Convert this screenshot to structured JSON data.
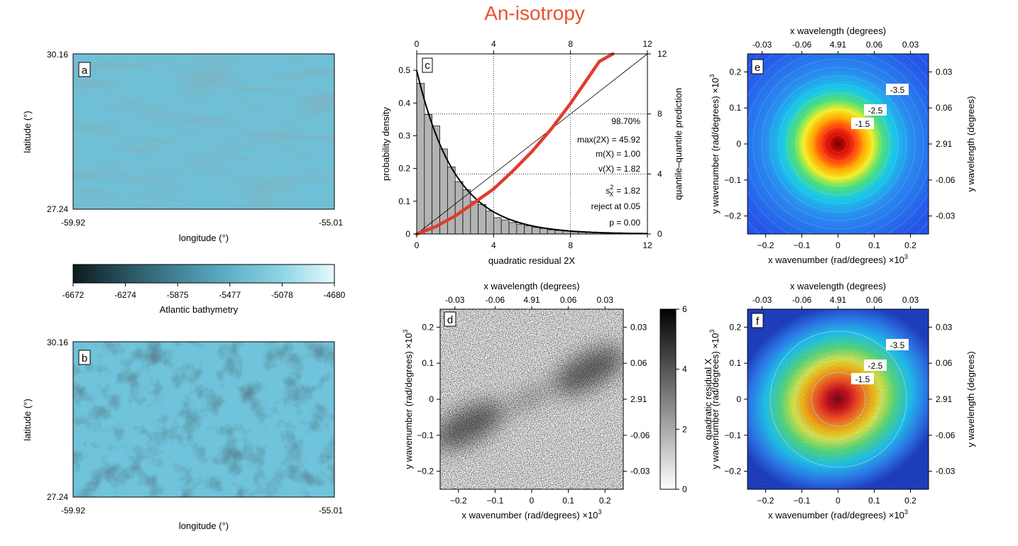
{
  "figure": {
    "title": "An-isotropy",
    "title_color": "#e8512f"
  },
  "panel_a": {
    "letter": "a",
    "xlabel": "longitude (°)",
    "ylabel": "latitude (°)",
    "x_ticks": [
      "-59.92",
      "-55.01"
    ],
    "y_ticks": [
      "30.16",
      "27.24"
    ]
  },
  "colorbar_ab": {
    "label": "Atlantic bathymetry",
    "ticks": [
      "-6672",
      "-6274",
      "-5875",
      "-5477",
      "-5078",
      "-4680"
    ],
    "colors": [
      "#0d1a1f",
      "#2f5f6d",
      "#56a7bf",
      "#8fd4e6",
      "#e6fbfd"
    ]
  },
  "panel_b": {
    "letter": "b",
    "xlabel": "longitude (°)",
    "ylabel": "latitude (°)",
    "x_ticks": [
      "-59.92",
      "-55.01"
    ],
    "y_ticks": [
      "30.16",
      "27.24"
    ]
  },
  "chart_data": [
    {
      "panel": "c",
      "type": "bar",
      "letter": "c",
      "xlabel": "quadratic residual 2X",
      "ylabel": "probability density",
      "y2label": "quantile–quantile prediction",
      "xlim": [
        0,
        12
      ],
      "ylim": [
        0,
        0.55
      ],
      "y2lim": [
        0,
        12
      ],
      "x_ticks": [
        "0",
        "4",
        "8",
        "12"
      ],
      "x2_ticks": [
        "0",
        "4",
        "8",
        "12"
      ],
      "y_ticks": [
        "0",
        "0.1",
        "0.2",
        "0.3",
        "0.4",
        "0.5"
      ],
      "y2_ticks": [
        "0",
        "4",
        "8",
        "12"
      ],
      "histogram": {
        "bin_width": 0.4,
        "values": [
          0.46,
          0.365,
          0.33,
          0.26,
          0.205,
          0.16,
          0.135,
          0.1,
          0.09,
          0.07,
          0.05,
          0.043,
          0.035,
          0.03,
          0.025,
          0.02,
          0.017,
          0.013,
          0.011,
          0.009,
          0.007,
          0.006,
          0.005,
          0.004,
          0.003,
          0.003,
          0.002,
          0.002,
          0.001,
          0.001
        ]
      },
      "qq_points": [
        [
          0,
          0
        ],
        [
          1,
          0.5
        ],
        [
          2,
          1.2
        ],
        [
          3,
          2.1
        ],
        [
          4,
          3.0
        ],
        [
          5,
          4.2
        ],
        [
          6,
          5.5
        ],
        [
          7,
          7.0
        ],
        [
          8,
          8.7
        ],
        [
          8.7,
          10.0
        ],
        [
          9.5,
          11.5
        ],
        [
          10.2,
          12.0
        ]
      ],
      "stats": [
        "98.70%",
        "max(2X) = 45.92",
        "m(X) =  1.00",
        "v(X) =  1.82",
        "reject at 0.05",
        "p =  0.00"
      ],
      "s2": {
        "symbol": "s",
        "sub": "X",
        "sup": "2",
        "value": "=  1.82"
      },
      "colors": {
        "bars": "#b3b3b3",
        "qq": "#e23b2e",
        "density": "#000000"
      }
    },
    {
      "panel": "d",
      "type": "heatmap",
      "letter": "d",
      "xlabel": "x wavenumber (rad/degrees)",
      "xlabel_scale": "×10",
      "xlabel_exp": "3",
      "ylabel": "y wavenumber (rad/degrees)",
      "ylabel_scale": "×10",
      "ylabel_exp": "3",
      "top_label": "x wavelength (degrees)",
      "right_label": "",
      "x_ticks": [
        "−0.2",
        "−0.1",
        "0",
        "0.1",
        "0.2"
      ],
      "y_ticks": [
        "0.2",
        "0.1",
        "0",
        "−0.1",
        "−0.2"
      ],
      "top_ticks": [
        "-0.03",
        "-0.06",
        "4.91",
        "0.06",
        "0.03"
      ],
      "right_ticks": [
        "0.03",
        "0.06",
        "2.91",
        "-0.06",
        "-0.03"
      ],
      "colorbar": {
        "label": "quadratic residual X",
        "ticks": [
          "6",
          "4",
          "2",
          "0"
        ],
        "colors": [
          "#000000",
          "#ffffff"
        ]
      }
    },
    {
      "panel": "e",
      "type": "heatmap",
      "letter": "e",
      "xlabel": "x wavenumber (rad/degrees)",
      "xlabel_scale": "×10",
      "xlabel_exp": "3",
      "ylabel": "y wavenumber (rad/degrees)",
      "ylabel_scale": "×10",
      "ylabel_exp": "3",
      "top_label": "x wavelength (degrees)",
      "right_label": "y wavelength (degrees)",
      "x_ticks": [
        "−0.2",
        "−0.1",
        "0",
        "0.1",
        "0.2"
      ],
      "y_ticks": [
        "0.2",
        "0.1",
        "0",
        "−0.1",
        "−0.2"
      ],
      "top_ticks": [
        "-0.03",
        "-0.06",
        "4.91",
        "0.06",
        "0.03"
      ],
      "right_ticks": [
        "0.03",
        "0.06",
        "2.91",
        "-0.06",
        "-0.03"
      ],
      "contour_labels": [
        "-3.5",
        "-2.5",
        "-1.5"
      ],
      "colors": [
        "#7a0000",
        "#e01010",
        "#ffb000",
        "#f2ef2a",
        "#55e070",
        "#1ac8e8",
        "#2a8af0",
        "#2556e8"
      ]
    },
    {
      "panel": "f",
      "type": "heatmap",
      "letter": "f",
      "xlabel": "x wavenumber (rad/degrees)",
      "xlabel_scale": "×10",
      "xlabel_exp": "3",
      "ylabel": "y wavenumber (rad/degrees)",
      "ylabel_scale": "×10",
      "ylabel_exp": "3",
      "top_label": "x wavelength (degrees)",
      "right_label": "y wavelength (degrees)",
      "x_ticks": [
        "−0.2",
        "−0.1",
        "0",
        "0.1",
        "0.2"
      ],
      "y_ticks": [
        "0.2",
        "0.1",
        "0",
        "−0.1",
        "−0.2"
      ],
      "top_ticks": [
        "-0.03",
        "-0.06",
        "4.91",
        "0.06",
        "0.03"
      ],
      "right_ticks": [
        "0.03",
        "0.06",
        "2.91",
        "-0.06",
        "-0.03"
      ],
      "contour_labels": [
        "-3.5",
        "-2.5",
        "-1.5"
      ],
      "colors": [
        "#7a0000",
        "#e01010",
        "#ffb000",
        "#f2ef2a",
        "#55e070",
        "#1ac8e8",
        "#2a8af0",
        "#1a2fb0"
      ]
    }
  ]
}
